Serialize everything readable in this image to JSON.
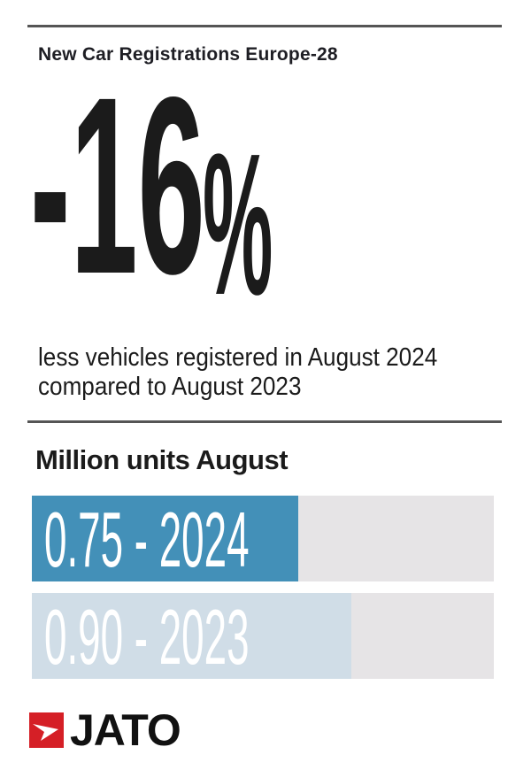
{
  "header": {
    "title": "New Car Registrations Europe-28"
  },
  "headline": {
    "value": "-16",
    "unit": "%"
  },
  "description": {
    "line1": "less vehicles registered in August 2024",
    "line2": "compared to August 2023"
  },
  "chart_data": {
    "type": "bar",
    "orientation": "horizontal",
    "title": "Million units August",
    "categories": [
      "2024",
      "2023"
    ],
    "values": [
      0.75,
      0.9
    ],
    "labels": [
      "0.75 - 2024",
      "0.90 - 2023"
    ],
    "colors": [
      "#4390b8",
      "#d0dde7"
    ],
    "track_color": "#e6e4e6"
  },
  "logo": {
    "text": "JATO",
    "color": "#d51f26"
  }
}
